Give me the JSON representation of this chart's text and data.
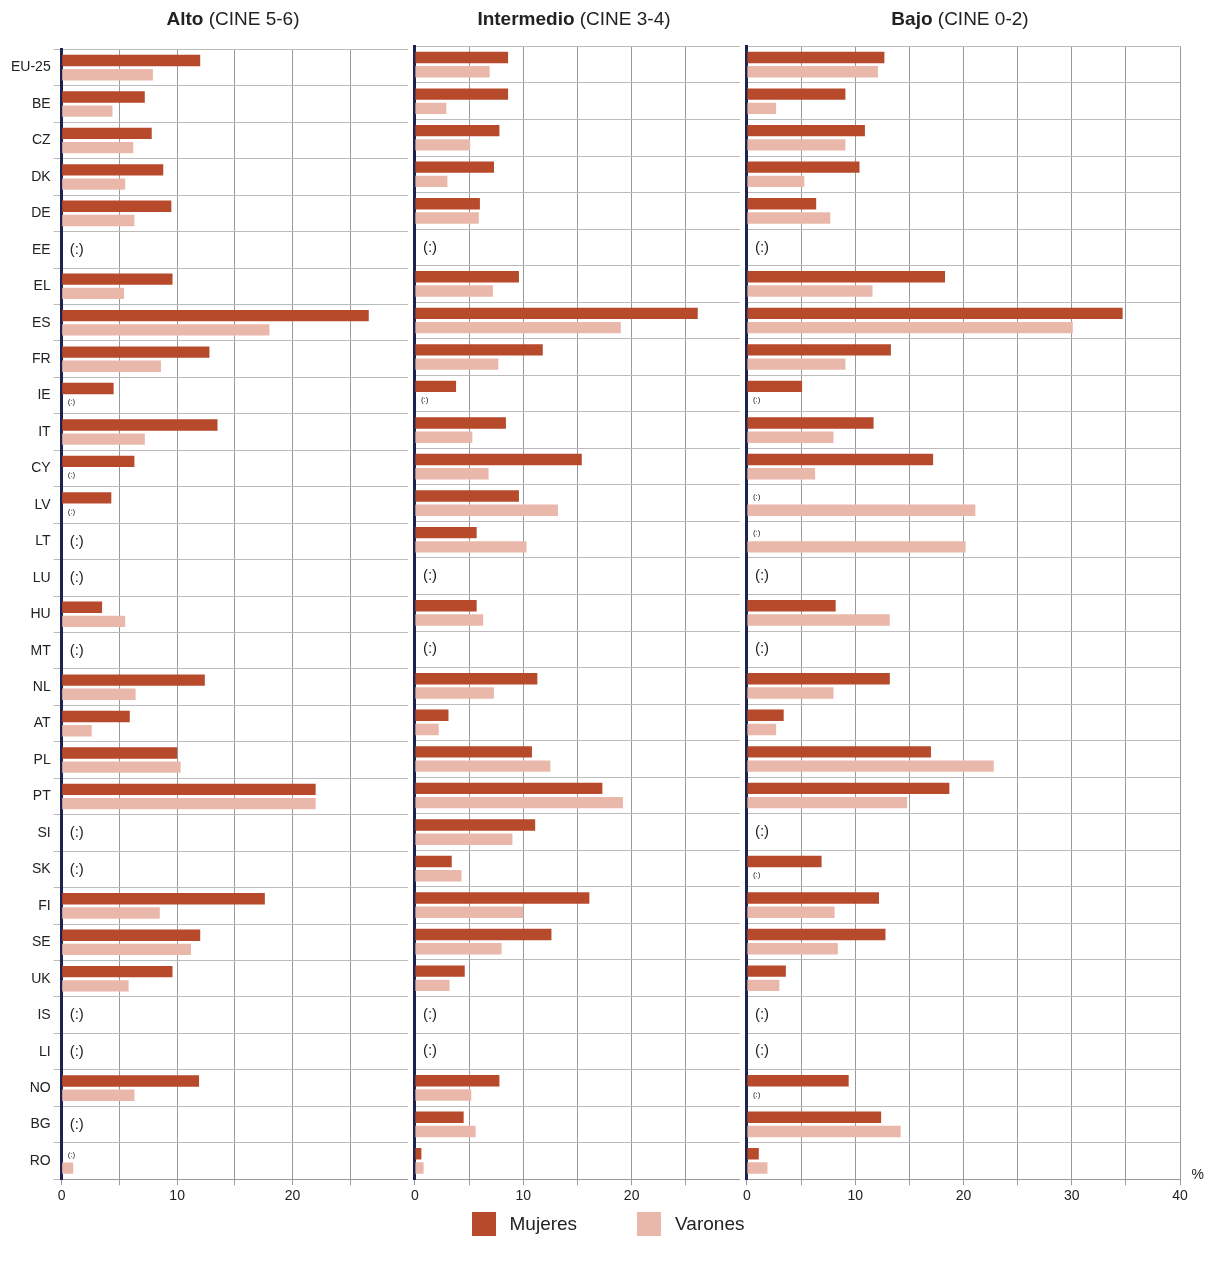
{
  "chart_data": [
    {
      "type": "bar",
      "orientation": "horizontal",
      "title": "Alto (CINE 5-6)",
      "legend": "bottom",
      "grid": true,
      "categories": [
        "EU-25",
        "BE",
        "CZ",
        "DK",
        "DE",
        "EE",
        "EL",
        "ES",
        "FR",
        "IE",
        "IT",
        "CY",
        "LV",
        "LT",
        "LU",
        "HU",
        "MT",
        "NL",
        "AT",
        "PL",
        "PT",
        "SI",
        "SK",
        "FI",
        "SE",
        "UK",
        "IS",
        "LI",
        "NO",
        "BG",
        "RO"
      ],
      "xlim": [
        0,
        30
      ],
      "xticks": [
        0,
        {
          "value": 5,
          "label": null
        },
        10,
        {
          "value": 15,
          "label": null
        },
        20,
        {
          "value": 25,
          "label": null
        }
      ],
      "series": [
        {
          "name": "Mujeres",
          "color": "#b84a2c",
          "values": [
            12.0,
            7.2,
            7.8,
            8.8,
            9.5,
            null,
            9.6,
            26.6,
            12.8,
            4.5,
            13.5,
            6.3,
            4.3,
            null,
            null,
            3.5,
            null,
            12.4,
            5.9,
            10.0,
            22.0,
            null,
            null,
            17.6,
            12.0,
            9.6,
            null,
            null,
            11.9,
            null,
            null
          ],
          "value_labels": [
            null,
            null,
            null,
            null,
            null,
            "(:)",
            null,
            null,
            null,
            null,
            null,
            null,
            null,
            "(:)",
            "(:)",
            null,
            "(:)",
            null,
            null,
            null,
            null,
            "(:)",
            "(:)",
            null,
            null,
            null,
            "(:)",
            "(:)",
            null,
            "(:)",
            "(:)"
          ]
        },
        {
          "name": "Varones",
          "color": "#e9b8aa",
          "values": [
            7.9,
            4.4,
            6.2,
            5.5,
            6.3,
            null,
            5.4,
            18.0,
            8.6,
            null,
            7.2,
            null,
            null,
            null,
            null,
            5.5,
            null,
            6.4,
            2.6,
            10.3,
            22.0,
            null,
            null,
            8.5,
            11.2,
            5.8,
            null,
            null,
            6.3,
            null,
            1.0
          ],
          "value_labels": [
            null,
            null,
            null,
            null,
            null,
            null,
            null,
            null,
            null,
            "(:)",
            null,
            "(:)",
            "(:)",
            null,
            null,
            null,
            null,
            null,
            null,
            null,
            null,
            null,
            null,
            null,
            null,
            null,
            null,
            null,
            null,
            null,
            null
          ]
        }
      ]
    },
    {
      "type": "bar",
      "orientation": "horizontal",
      "title": "Intermedio (CINE 3-4)",
      "grid": true,
      "tick_labels": "x",
      "categories": [
        "EU-25",
        "BE",
        "CZ",
        "DK",
        "DE",
        "EE",
        "EL",
        "ES",
        "FR",
        "IE",
        "IT",
        "CY",
        "LV",
        "LT",
        "LU",
        "HU",
        "MT",
        "NL",
        "AT",
        "PL",
        "PT",
        "SI",
        "SK",
        "FI",
        "SE",
        "UK",
        "IS",
        "LI",
        "NO",
        "BG",
        "RO"
      ],
      "xlim": [
        0,
        30
      ],
      "xticks": [
        0,
        {
          "value": 5,
          "label": null
        },
        10,
        {
          "value": 15,
          "label": null
        },
        20,
        {
          "value": 25,
          "label": null
        }
      ],
      "series": [
        {
          "color": "#b84a2c",
          "values": [
            8.6,
            8.6,
            7.8,
            7.3,
            6.0,
            null,
            9.6,
            26.1,
            11.8,
            3.8,
            8.4,
            15.4,
            9.6,
            5.7,
            null,
            5.7,
            null,
            11.3,
            3.1,
            10.8,
            17.3,
            11.1,
            3.4,
            16.1,
            12.6,
            4.6,
            null,
            null,
            7.8,
            4.5,
            0.6
          ],
          "value_labels": [
            null,
            null,
            null,
            null,
            null,
            "(:)",
            null,
            null,
            null,
            null,
            null,
            null,
            null,
            null,
            "(:)",
            null,
            "(:)",
            null,
            null,
            null,
            null,
            null,
            null,
            null,
            null,
            null,
            "(:)",
            "(:)",
            null,
            null,
            null
          ]
        },
        {
          "color": "#e9b8aa",
          "values": [
            6.9,
            2.9,
            5.1,
            3.0,
            5.9,
            null,
            7.2,
            19.0,
            7.7,
            null,
            5.3,
            6.8,
            13.2,
            10.3,
            null,
            6.3,
            null,
            7.3,
            2.2,
            12.5,
            19.2,
            9.0,
            4.3,
            10.0,
            8.0,
            3.2,
            null,
            null,
            5.2,
            5.6,
            0.8
          ],
          "value_labels": [
            null,
            null,
            null,
            null,
            null,
            null,
            null,
            null,
            null,
            "(:)",
            null,
            null,
            null,
            null,
            null,
            null,
            null,
            null,
            null,
            null,
            null,
            null,
            null,
            null,
            null,
            null,
            null,
            null,
            null,
            null,
            null
          ]
        }
      ]
    },
    {
      "type": "bar",
      "orientation": "horizontal",
      "title": "Bajo (CINE 0-2)",
      "xlabel": "%",
      "grid": true,
      "tick_labels": "x",
      "categories": [
        "EU-25",
        "BE",
        "CZ",
        "DK",
        "DE",
        "EE",
        "EL",
        "ES",
        "FR",
        "IE",
        "IT",
        "CY",
        "LV",
        "LT",
        "LU",
        "HU",
        "MT",
        "NL",
        "AT",
        "PL",
        "PT",
        "SI",
        "SK",
        "FI",
        "SE",
        "UK",
        "IS",
        "LI",
        "NO",
        "BG",
        "RO"
      ],
      "xlim": [
        0,
        40
      ],
      "xticks": [
        0,
        {
          "value": 5,
          "label": null
        },
        10,
        {
          "value": 15,
          "label": null
        },
        20,
        {
          "value": 25,
          "label": null
        },
        30,
        {
          "value": 35,
          "label": null
        },
        40
      ],
      "series": [
        {
          "color": "#b84a2c",
          "values": [
            12.7,
            9.1,
            10.9,
            10.4,
            6.4,
            null,
            18.3,
            34.7,
            13.3,
            5.1,
            11.7,
            17.2,
            null,
            null,
            null,
            8.2,
            null,
            13.2,
            3.4,
            17.0,
            18.7,
            null,
            6.9,
            12.2,
            12.8,
            3.6,
            null,
            null,
            9.4,
            12.4,
            1.1
          ],
          "value_labels": [
            null,
            null,
            null,
            null,
            null,
            "(:)",
            null,
            null,
            null,
            null,
            null,
            null,
            "(:)",
            "(:)",
            "(:)",
            null,
            "(:)",
            null,
            null,
            null,
            null,
            "(:)",
            null,
            null,
            null,
            null,
            "(:)",
            "(:)",
            null,
            null,
            null
          ]
        },
        {
          "color": "#e9b8aa",
          "values": [
            12.1,
            2.7,
            9.1,
            5.3,
            7.7,
            null,
            11.6,
            30.1,
            9.1,
            null,
            8.0,
            6.3,
            21.1,
            20.2,
            null,
            13.2,
            null,
            8.0,
            2.7,
            22.8,
            14.8,
            null,
            null,
            8.1,
            8.4,
            3.0,
            null,
            null,
            null,
            14.2,
            1.9
          ],
          "value_labels": [
            null,
            null,
            null,
            null,
            null,
            null,
            null,
            null,
            null,
            "(:)",
            null,
            null,
            null,
            null,
            null,
            null,
            null,
            null,
            null,
            null,
            null,
            null,
            "(:)",
            null,
            null,
            null,
            null,
            null,
            "(:)",
            null,
            null
          ]
        }
      ]
    }
  ]
}
